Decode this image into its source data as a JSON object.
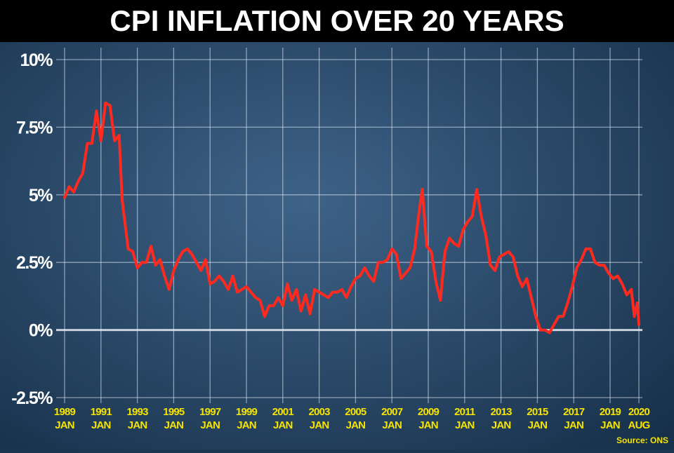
{
  "chart_data": {
    "type": "line",
    "title": "CPI INFLATION OVER 20 YEARS",
    "source": "Source: ONS",
    "xlim": [
      "1989-01",
      "2020-08"
    ],
    "xticks": [
      {
        "value": "1989-01",
        "label": [
          "1989",
          "JAN"
        ]
      },
      {
        "value": "1991-01",
        "label": [
          "1991",
          "JAN"
        ]
      },
      {
        "value": "1993-01",
        "label": [
          "1993",
          "JAN"
        ]
      },
      {
        "value": "1995-01",
        "label": [
          "1995",
          "JAN"
        ]
      },
      {
        "value": "1997-01",
        "label": [
          "1997",
          "JAN"
        ]
      },
      {
        "value": "1999-01",
        "label": [
          "1999",
          "JAN"
        ]
      },
      {
        "value": "2001-01",
        "label": [
          "2001",
          "JAN"
        ]
      },
      {
        "value": "2003-01",
        "label": [
          "2003",
          "JAN"
        ]
      },
      {
        "value": "2005-01",
        "label": [
          "2005",
          "JAN"
        ]
      },
      {
        "value": "2007-01",
        "label": [
          "2007",
          "JAN"
        ]
      },
      {
        "value": "2009-01",
        "label": [
          "2009",
          "JAN"
        ]
      },
      {
        "value": "2011-01",
        "label": [
          "2011",
          "JAN"
        ]
      },
      {
        "value": "2013-01",
        "label": [
          "2013",
          "JAN"
        ]
      },
      {
        "value": "2015-01",
        "label": [
          "2015",
          "JAN"
        ]
      },
      {
        "value": "2017-01",
        "label": [
          "2017",
          "JAN"
        ]
      },
      {
        "value": "2019-01",
        "label": [
          "2019",
          "JAN"
        ]
      },
      {
        "value": "2020-08",
        "label": [
          "2020",
          "AUG"
        ]
      }
    ],
    "ylim": [
      -2.5,
      10
    ],
    "yticks": [
      {
        "value": 10,
        "label": "10%"
      },
      {
        "value": 7.5,
        "label": "7.5%"
      },
      {
        "value": 5,
        "label": "5%"
      },
      {
        "value": 2.5,
        "label": "2.5%"
      },
      {
        "value": 0,
        "label": "0%"
      },
      {
        "value": -2.5,
        "label": "-2.5%"
      }
    ],
    "grid": true,
    "color": "#ff2a1f",
    "x": [
      "1989-01",
      "1989-04",
      "1989-07",
      "1989-10",
      "1990-01",
      "1990-04",
      "1990-07",
      "1990-10",
      "1991-01",
      "1991-04",
      "1991-07",
      "1991-10",
      "1992-01",
      "1992-03",
      "1992-07",
      "1992-10",
      "1993-01",
      "1993-04",
      "1993-07",
      "1993-10",
      "1994-01",
      "1994-04",
      "1994-07",
      "1994-10",
      "1995-01",
      "1995-04",
      "1995-07",
      "1995-10",
      "1996-01",
      "1996-04",
      "1996-07",
      "1996-10",
      "1997-01",
      "1997-04",
      "1997-07",
      "1997-10",
      "1998-01",
      "1998-04",
      "1998-07",
      "1998-10",
      "1999-01",
      "1999-04",
      "1999-07",
      "1999-10",
      "2000-01",
      "2000-04",
      "2000-07",
      "2000-10",
      "2001-01",
      "2001-04",
      "2001-07",
      "2001-10",
      "2002-01",
      "2002-04",
      "2002-07",
      "2002-10",
      "2003-01",
      "2003-04",
      "2003-07",
      "2003-10",
      "2004-01",
      "2004-04",
      "2004-07",
      "2004-10",
      "2005-01",
      "2005-04",
      "2005-07",
      "2005-10",
      "2006-01",
      "2006-04",
      "2006-07",
      "2006-10",
      "2007-01",
      "2007-04",
      "2007-07",
      "2007-10",
      "2008-01",
      "2008-04",
      "2008-07",
      "2008-09",
      "2008-12",
      "2009-03",
      "2009-06",
      "2009-09",
      "2009-12",
      "2010-03",
      "2010-06",
      "2010-09",
      "2010-12",
      "2011-03",
      "2011-06",
      "2011-09",
      "2011-12",
      "2012-03",
      "2012-06",
      "2012-09",
      "2012-12",
      "2013-03",
      "2013-06",
      "2013-09",
      "2013-12",
      "2014-03",
      "2014-06",
      "2014-09",
      "2014-12",
      "2015-03",
      "2015-06",
      "2015-09",
      "2015-12",
      "2016-03",
      "2016-06",
      "2016-09",
      "2016-12",
      "2017-03",
      "2017-06",
      "2017-09",
      "2017-12",
      "2018-03",
      "2018-06",
      "2018-09",
      "2018-12",
      "2019-03",
      "2019-06",
      "2019-09",
      "2019-12",
      "2020-03",
      "2020-05",
      "2020-07",
      "2020-08"
    ],
    "values": [
      4.9,
      5.3,
      5.1,
      5.5,
      5.8,
      6.9,
      6.9,
      8.1,
      7.0,
      8.4,
      8.3,
      7.0,
      7.2,
      4.8,
      3.0,
      2.9,
      2.3,
      2.5,
      2.5,
      3.1,
      2.4,
      2.6,
      2.0,
      1.5,
      2.2,
      2.6,
      2.9,
      3.0,
      2.8,
      2.5,
      2.2,
      2.6,
      1.7,
      1.8,
      2.0,
      1.8,
      1.5,
      2.0,
      1.4,
      1.5,
      1.6,
      1.4,
      1.2,
      1.1,
      0.5,
      0.9,
      0.9,
      1.2,
      0.9,
      1.7,
      1.1,
      1.5,
      0.7,
      1.3,
      0.6,
      1.5,
      1.4,
      1.3,
      1.2,
      1.4,
      1.4,
      1.5,
      1.2,
      1.6,
      1.9,
      2.0,
      2.3,
      2.0,
      1.8,
      2.5,
      2.5,
      2.6,
      3.0,
      2.8,
      1.9,
      2.1,
      2.3,
      3.0,
      4.4,
      5.2,
      3.1,
      2.9,
      1.8,
      1.1,
      2.9,
      3.4,
      3.2,
      3.1,
      3.7,
      4.0,
      4.2,
      5.2,
      4.2,
      3.5,
      2.4,
      2.2,
      2.7,
      2.8,
      2.9,
      2.7,
      2.0,
      1.6,
      1.9,
      1.2,
      0.5,
      0.0,
      0.0,
      -0.1,
      0.2,
      0.5,
      0.5,
      1.0,
      1.6,
      2.3,
      2.6,
      3.0,
      3.0,
      2.5,
      2.4,
      2.4,
      2.1,
      1.9,
      2.0,
      1.7,
      1.3,
      1.5,
      0.5,
      1.0,
      0.2
    ]
  }
}
